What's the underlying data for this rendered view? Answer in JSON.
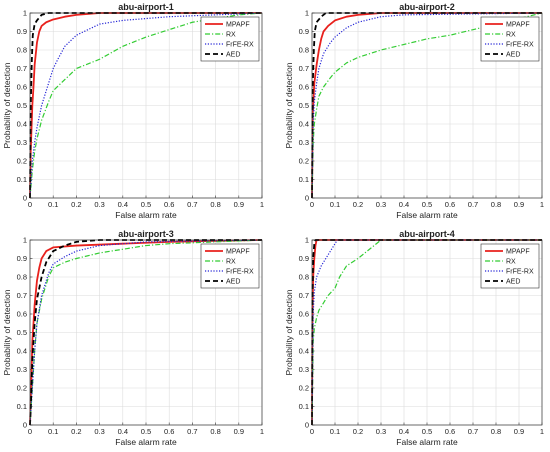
{
  "chart_data": [
    {
      "type": "line",
      "title": "abu-airport-1",
      "xlabel": "False alarm rate",
      "ylabel": "Probability of detection",
      "xlim": [
        0,
        1
      ],
      "ylim": [
        0,
        1
      ],
      "xticks": [
        "0",
        "0.1",
        "0.2",
        "0.3",
        "0.4",
        "0.5",
        "0.6",
        "0.7",
        "0.8",
        "0.9",
        "1"
      ],
      "yticks": [
        "0",
        "0.1",
        "0.2",
        "0.3",
        "0.4",
        "0.5",
        "0.6",
        "0.7",
        "0.8",
        "0.9",
        "1"
      ],
      "grid": true,
      "legend_position": "top-right",
      "series": [
        {
          "name": "MPAPF",
          "color": "#e8211d",
          "style": "solid",
          "points": [
            [
              0,
              0
            ],
            [
              0.003,
              0.25
            ],
            [
              0.01,
              0.5
            ],
            [
              0.015,
              0.6
            ],
            [
              0.02,
              0.72
            ],
            [
              0.03,
              0.84
            ],
            [
              0.04,
              0.9
            ],
            [
              0.05,
              0.93
            ],
            [
              0.07,
              0.95
            ],
            [
              0.1,
              0.965
            ],
            [
              0.15,
              0.98
            ],
            [
              0.2,
              0.99
            ],
            [
              0.3,
              1
            ],
            [
              1,
              1
            ]
          ]
        },
        {
          "name": "RX",
          "color": "#33cc33",
          "style": "dashdot",
          "points": [
            [
              0,
              0
            ],
            [
              0.01,
              0.15
            ],
            [
              0.02,
              0.25
            ],
            [
              0.03,
              0.32
            ],
            [
              0.05,
              0.42
            ],
            [
              0.08,
              0.52
            ],
            [
              0.1,
              0.58
            ],
            [
              0.15,
              0.64
            ],
            [
              0.2,
              0.7
            ],
            [
              0.3,
              0.75
            ],
            [
              0.4,
              0.82
            ],
            [
              0.5,
              0.87
            ],
            [
              0.6,
              0.91
            ],
            [
              0.7,
              0.95
            ],
            [
              0.8,
              0.97
            ],
            [
              0.9,
              0.99
            ],
            [
              1,
              1
            ]
          ]
        },
        {
          "name": "FrFE-RX",
          "color": "#2424d6",
          "style": "dotted",
          "points": [
            [
              0,
              0
            ],
            [
              0.01,
              0.2
            ],
            [
              0.02,
              0.3
            ],
            [
              0.03,
              0.38
            ],
            [
              0.05,
              0.5
            ],
            [
              0.08,
              0.62
            ],
            [
              0.1,
              0.7
            ],
            [
              0.12,
              0.75
            ],
            [
              0.15,
              0.82
            ],
            [
              0.2,
              0.88
            ],
            [
              0.25,
              0.91
            ],
            [
              0.3,
              0.94
            ],
            [
              0.4,
              0.96
            ],
            [
              0.5,
              0.97
            ],
            [
              0.6,
              0.98
            ],
            [
              0.8,
              0.99
            ],
            [
              1,
              1
            ]
          ]
        },
        {
          "name": "AED",
          "color": "#000000",
          "style": "dashed",
          "points": [
            [
              0,
              0
            ],
            [
              0.003,
              0.5
            ],
            [
              0.008,
              0.75
            ],
            [
              0.012,
              0.88
            ],
            [
              0.02,
              0.94
            ],
            [
              0.03,
              0.96
            ],
            [
              0.05,
              0.99
            ],
            [
              0.08,
              1
            ],
            [
              1,
              1
            ]
          ]
        }
      ]
    },
    {
      "type": "line",
      "title": "abu-airport-2",
      "xlabel": "False alarm rate",
      "ylabel": "Probability of detection",
      "xlim": [
        0,
        1
      ],
      "ylim": [
        0,
        1
      ],
      "xticks": [
        "0",
        "0.1",
        "0.2",
        "0.3",
        "0.4",
        "0.5",
        "0.6",
        "0.7",
        "0.8",
        "0.9",
        "1"
      ],
      "yticks": [
        "0",
        "0.1",
        "0.2",
        "0.3",
        "0.4",
        "0.5",
        "0.6",
        "0.7",
        "0.8",
        "0.9",
        "1"
      ],
      "grid": true,
      "legend_position": "top-right",
      "series": [
        {
          "name": "MPAPF",
          "color": "#e8211d",
          "style": "solid",
          "points": [
            [
              0,
              0
            ],
            [
              0.003,
              0.45
            ],
            [
              0.01,
              0.62
            ],
            [
              0.02,
              0.72
            ],
            [
              0.03,
              0.8
            ],
            [
              0.04,
              0.86
            ],
            [
              0.05,
              0.9
            ],
            [
              0.07,
              0.93
            ],
            [
              0.1,
              0.96
            ],
            [
              0.15,
              0.98
            ],
            [
              0.2,
              0.99
            ],
            [
              0.3,
              1
            ],
            [
              1,
              1
            ]
          ]
        },
        {
          "name": "RX",
          "color": "#33cc33",
          "style": "dashdot",
          "points": [
            [
              0,
              0
            ],
            [
              0.005,
              0.3
            ],
            [
              0.01,
              0.4
            ],
            [
              0.02,
              0.48
            ],
            [
              0.03,
              0.55
            ],
            [
              0.05,
              0.6
            ],
            [
              0.08,
              0.65
            ],
            [
              0.1,
              0.68
            ],
            [
              0.15,
              0.73
            ],
            [
              0.2,
              0.76
            ],
            [
              0.3,
              0.8
            ],
            [
              0.4,
              0.83
            ],
            [
              0.5,
              0.86
            ],
            [
              0.6,
              0.88
            ],
            [
              0.7,
              0.91
            ],
            [
              0.8,
              0.94
            ],
            [
              0.9,
              0.97
            ],
            [
              1,
              1
            ]
          ]
        },
        {
          "name": "FrFE-RX",
          "color": "#2424d6",
          "style": "dotted",
          "points": [
            [
              0,
              0
            ],
            [
              0.005,
              0.4
            ],
            [
              0.01,
              0.52
            ],
            [
              0.02,
              0.62
            ],
            [
              0.03,
              0.7
            ],
            [
              0.05,
              0.78
            ],
            [
              0.08,
              0.84
            ],
            [
              0.1,
              0.87
            ],
            [
              0.15,
              0.92
            ],
            [
              0.2,
              0.95
            ],
            [
              0.3,
              0.98
            ],
            [
              0.4,
              0.99
            ],
            [
              1,
              1
            ]
          ]
        },
        {
          "name": "AED",
          "color": "#000000",
          "style": "dashed",
          "points": [
            [
              0,
              0
            ],
            [
              0.003,
              0.6
            ],
            [
              0.008,
              0.8
            ],
            [
              0.012,
              0.9
            ],
            [
              0.02,
              0.95
            ],
            [
              0.04,
              0.98
            ],
            [
              0.06,
              1
            ],
            [
              1,
              1
            ]
          ]
        }
      ]
    },
    {
      "type": "line",
      "title": "abu-airport-3",
      "xlabel": "False alarm rate",
      "ylabel": "Probability of detection",
      "xlim": [
        0,
        1
      ],
      "ylim": [
        0,
        1
      ],
      "xticks": [
        "0",
        "0.1",
        "0.2",
        "0.3",
        "0.4",
        "0.5",
        "0.6",
        "0.7",
        "0.8",
        "0.9",
        "1"
      ],
      "yticks": [
        "0",
        "0.1",
        "0.2",
        "0.3",
        "0.4",
        "0.5",
        "0.6",
        "0.7",
        "0.8",
        "0.9",
        "1"
      ],
      "grid": true,
      "legend_position": "top-right",
      "series": [
        {
          "name": "MPAPF",
          "color": "#e8211d",
          "style": "solid",
          "points": [
            [
              0,
              0
            ],
            [
              0.005,
              0.2
            ],
            [
              0.01,
              0.45
            ],
            [
              0.02,
              0.65
            ],
            [
              0.03,
              0.78
            ],
            [
              0.04,
              0.85
            ],
            [
              0.05,
              0.9
            ],
            [
              0.07,
              0.94
            ],
            [
              0.1,
              0.96
            ],
            [
              0.2,
              0.97
            ],
            [
              0.4,
              0.98
            ],
            [
              0.6,
              0.99
            ],
            [
              1,
              1
            ]
          ]
        },
        {
          "name": "RX",
          "color": "#33cc33",
          "style": "dashdot",
          "points": [
            [
              0,
              0
            ],
            [
              0.01,
              0.2
            ],
            [
              0.02,
              0.4
            ],
            [
              0.03,
              0.55
            ],
            [
              0.05,
              0.68
            ],
            [
              0.08,
              0.8
            ],
            [
              0.1,
              0.85
            ],
            [
              0.15,
              0.88
            ],
            [
              0.2,
              0.9
            ],
            [
              0.3,
              0.93
            ],
            [
              0.4,
              0.95
            ],
            [
              0.5,
              0.97
            ],
            [
              0.6,
              0.98
            ],
            [
              0.8,
              0.99
            ],
            [
              1,
              1
            ]
          ]
        },
        {
          "name": "FrFE-RX",
          "color": "#2424d6",
          "style": "dotted",
          "points": [
            [
              0,
              0
            ],
            [
              0.01,
              0.2
            ],
            [
              0.02,
              0.4
            ],
            [
              0.03,
              0.55
            ],
            [
              0.05,
              0.7
            ],
            [
              0.08,
              0.82
            ],
            [
              0.1,
              0.87
            ],
            [
              0.15,
              0.91
            ],
            [
              0.2,
              0.94
            ],
            [
              0.3,
              0.97
            ],
            [
              0.4,
              0.98
            ],
            [
              0.5,
              0.99
            ],
            [
              1,
              1
            ]
          ]
        },
        {
          "name": "AED",
          "color": "#000000",
          "style": "dashed",
          "points": [
            [
              0,
              0
            ],
            [
              0.005,
              0.15
            ],
            [
              0.01,
              0.35
            ],
            [
              0.02,
              0.55
            ],
            [
              0.03,
              0.68
            ],
            [
              0.05,
              0.8
            ],
            [
              0.07,
              0.88
            ],
            [
              0.1,
              0.94
            ],
            [
              0.15,
              0.97
            ],
            [
              0.2,
              0.99
            ],
            [
              0.3,
              1
            ],
            [
              1,
              1
            ]
          ]
        }
      ]
    },
    {
      "type": "line",
      "title": "abu-airport-4",
      "xlabel": "False alarm rate",
      "ylabel": "Probability of detection",
      "xlim": [
        0,
        1
      ],
      "ylim": [
        0,
        1
      ],
      "xticks": [
        "0",
        "0.1",
        "0.2",
        "0.3",
        "0.4",
        "0.5",
        "0.6",
        "0.7",
        "0.8",
        "0.9",
        "1"
      ],
      "yticks": [
        "0",
        "0.1",
        "0.2",
        "0.3",
        "0.4",
        "0.5",
        "0.6",
        "0.7",
        "0.8",
        "0.9",
        "1"
      ],
      "grid": true,
      "legend_position": "top-right",
      "series": [
        {
          "name": "MPAPF",
          "color": "#e8211d",
          "style": "solid",
          "points": [
            [
              0,
              0
            ],
            [
              0.002,
              0.6
            ],
            [
              0.005,
              0.8
            ],
            [
              0.01,
              0.9
            ],
            [
              0.015,
              0.97
            ],
            [
              0.02,
              1
            ],
            [
              1,
              1
            ]
          ]
        },
        {
          "name": "RX",
          "color": "#33cc33",
          "style": "dashdot",
          "points": [
            [
              0,
              0
            ],
            [
              0.005,
              0.45
            ],
            [
              0.01,
              0.52
            ],
            [
              0.02,
              0.58
            ],
            [
              0.03,
              0.62
            ],
            [
              0.05,
              0.66
            ],
            [
              0.07,
              0.7
            ],
            [
              0.1,
              0.74
            ],
            [
              0.12,
              0.8
            ],
            [
              0.15,
              0.86
            ],
            [
              0.2,
              0.9
            ],
            [
              0.25,
              0.95
            ],
            [
              0.3,
              1
            ],
            [
              1,
              1
            ]
          ]
        },
        {
          "name": "FrFE-RX",
          "color": "#2424d6",
          "style": "dotted",
          "points": [
            [
              0,
              0
            ],
            [
              0.005,
              0.6
            ],
            [
              0.01,
              0.72
            ],
            [
              0.02,
              0.8
            ],
            [
              0.04,
              0.86
            ],
            [
              0.06,
              0.9
            ],
            [
              0.08,
              0.94
            ],
            [
              0.1,
              0.98
            ],
            [
              0.11,
              1
            ],
            [
              1,
              1
            ]
          ]
        },
        {
          "name": "AED",
          "color": "#000000",
          "style": "dashed",
          "points": [
            [
              0,
              0
            ],
            [
              0.002,
              0.7
            ],
            [
              0.005,
              0.9
            ],
            [
              0.01,
              0.98
            ],
            [
              0.015,
              1
            ],
            [
              1,
              1
            ]
          ]
        }
      ]
    }
  ]
}
